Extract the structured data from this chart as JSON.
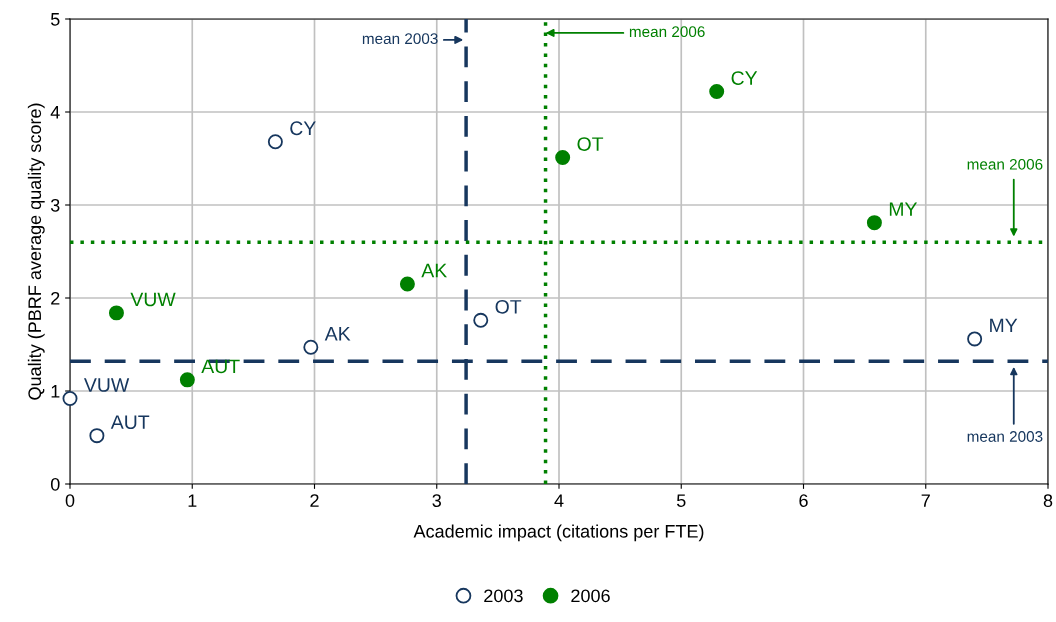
{
  "chart_data": {
    "type": "scatter",
    "xlabel": "Academic impact (citations per FTE)",
    "ylabel": "Quality (PBRF average quality score)",
    "xlim": [
      0,
      8
    ],
    "xticks": [
      0,
      1,
      2,
      3,
      4,
      5,
      6,
      7,
      8
    ],
    "ylim": [
      0,
      5
    ],
    "yticks": [
      0,
      1,
      2,
      3,
      4,
      5
    ],
    "grid": true,
    "legend": "bottom",
    "marker": "circle",
    "series": [
      {
        "name": "2003",
        "color": "#17375e",
        "x": [
          0,
          0.22,
          1.97,
          1.68,
          3.36,
          7.4
        ],
        "values": [
          0.92,
          0.52,
          1.47,
          3.68,
          1.76,
          1.56
        ],
        "value_labels": [
          "VUW",
          "AUT",
          "AK",
          "CY",
          "OT",
          "MY"
        ]
      },
      {
        "name": "2006",
        "color": "#008000",
        "x": [
          0.38,
          0.96,
          2.76,
          4.03,
          5.29,
          6.58
        ],
        "values": [
          1.84,
          1.12,
          2.15,
          3.51,
          4.22,
          2.81
        ],
        "value_labels": [
          "VUW",
          "AUT",
          "AK",
          "OT",
          "CY",
          "MY"
        ]
      }
    ],
    "ref_lines": [
      {
        "axis": "x",
        "value": 3.24,
        "label": "mean 2003",
        "color": "#17375e",
        "line_style": "dashed"
      },
      {
        "axis": "y",
        "value": 1.32,
        "label": "mean 2003",
        "color": "#17375e",
        "line_style": "dashed"
      },
      {
        "axis": "x",
        "value": 3.89,
        "label": "mean 2006",
        "color": "#008000",
        "line_style": "dotted"
      },
      {
        "axis": "y",
        "value": 2.6,
        "label": "mean 2006",
        "color": "#008000",
        "line_style": "dotted"
      }
    ]
  }
}
